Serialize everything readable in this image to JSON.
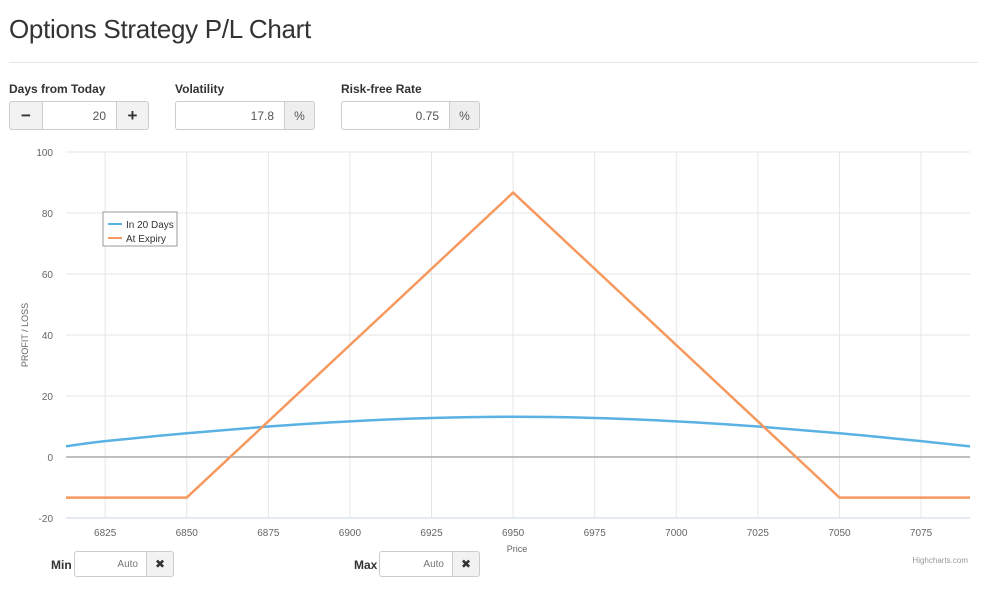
{
  "page": {
    "title": "Options Strategy P/L Chart"
  },
  "controls": {
    "days": {
      "label": "Days from Today",
      "value": "20",
      "minus": "−",
      "plus": "+"
    },
    "volatility": {
      "label": "Volatility",
      "value": "17.8",
      "unit": "%"
    },
    "rate": {
      "label": "Risk-free Rate",
      "value": "0.75",
      "unit": "%"
    }
  },
  "range": {
    "min": {
      "label": "Min",
      "placeholder": "Auto",
      "clear": "✖"
    },
    "max": {
      "label": "Max",
      "placeholder": "Auto",
      "clear": "✖"
    }
  },
  "chart_data": {
    "type": "line",
    "xlabel": "Price",
    "ylabel": "PROFIT / LOSS",
    "xlim": [
      6813,
      7090
    ],
    "ylim": [
      -20,
      100
    ],
    "x_ticks": [
      6825,
      6850,
      6875,
      6900,
      6925,
      6950,
      6975,
      7000,
      7025,
      7050,
      7075
    ],
    "y_ticks": [
      -20,
      0,
      20,
      40,
      60,
      80,
      100
    ],
    "grid": true,
    "legend_position": "top-left",
    "credits": "Highcharts.com",
    "series": [
      {
        "name": "In 20 Days",
        "color": "#5ab1e4",
        "x": [
          6813,
          6825,
          6850,
          6875,
          6900,
          6925,
          6950,
          6975,
          7000,
          7025,
          7050,
          7075,
          7090
        ],
        "y": [
          3.5,
          5.2,
          7.8,
          10.0,
          11.7,
          12.8,
          13.2,
          12.8,
          11.7,
          10.0,
          7.8,
          5.2,
          3.5
        ]
      },
      {
        "name": "At Expiry",
        "color": "#f5995f",
        "x": [
          6813,
          6850,
          6950,
          7050,
          7090
        ],
        "y": [
          -13.3,
          -13.3,
          86.7,
          -13.3,
          -13.3
        ]
      }
    ]
  }
}
